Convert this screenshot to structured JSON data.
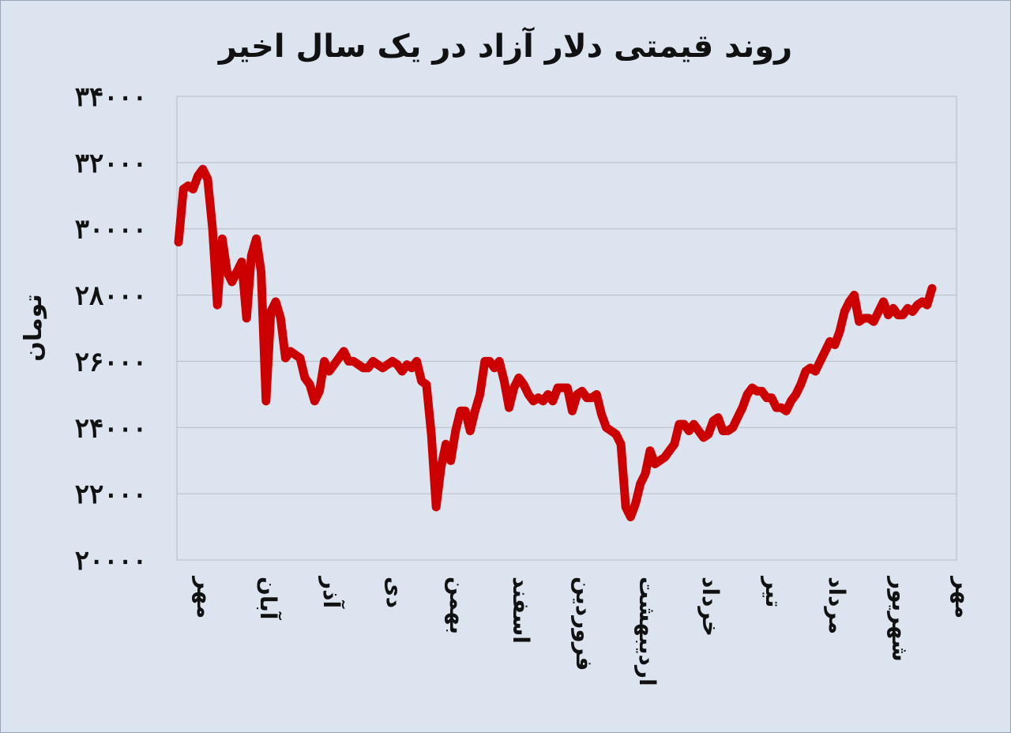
{
  "chart_data": {
    "type": "line",
    "title": "روند قیمتی دلار آزاد در یک سال اخیر",
    "ylabel": "تومان",
    "xlabel": "",
    "ylim": [
      20000,
      34000
    ],
    "yticks": [
      20000,
      22000,
      24000,
      26000,
      28000,
      30000,
      32000,
      34000
    ],
    "ytick_labels": [
      "۲۰۰۰۰",
      "۲۲۰۰۰",
      "۲۴۰۰۰",
      "۲۶۰۰۰",
      "۲۸۰۰۰",
      "۳۰۰۰۰",
      "۳۲۰۰۰",
      "۳۴۰۰۰"
    ],
    "grid": true,
    "months": [
      "مهر",
      "آبان",
      "آذر",
      "دی",
      "بهمن",
      "اسفند",
      "فروردین",
      "اردیبهشت",
      "خرداد",
      "تیر",
      "مرداد",
      "شهریور",
      "مهر"
    ],
    "line_color": "#cc0000",
    "series": [
      {
        "values": [
          29600,
          31200,
          31300,
          31200,
          31600,
          31800,
          31500,
          30000,
          27700,
          29700,
          28700,
          28400,
          28700,
          29000,
          27300,
          29200,
          29700,
          28700,
          24800,
          27500,
          27800,
          27300,
          26100,
          26300,
          26200,
          26100,
          25500,
          25300,
          24800,
          25100,
          26000,
          25700,
          25900,
          26100,
          26300,
          26000,
          26000,
          25900,
          25800,
          25800,
          26000,
          25900,
          25800,
          25900,
          26000,
          25900,
          25700,
          25900,
          25800,
          26000,
          25400,
          25300,
          23800,
          21600,
          22800,
          23500,
          23000,
          23900,
          24500,
          24500,
          23900,
          24500,
          25000,
          26000,
          26000,
          25800,
          26000,
          25400,
          24600,
          25200,
          25500,
          25300,
          25000,
          24800,
          24900,
          24800,
          25000,
          24800,
          25200,
          25200,
          25200,
          24500,
          25000,
          25100,
          24900,
          24900,
          25000,
          24400,
          24000,
          23900,
          23800,
          23500,
          21600,
          21300,
          21700,
          22300,
          22600,
          23300,
          22900,
          23000,
          23100,
          23300,
          23500,
          24100,
          24100,
          23900,
          24100,
          23900,
          23700,
          23800,
          24200,
          24300,
          23900,
          23900,
          24000,
          24300,
          24600,
          25000,
          25200,
          25100,
          25100,
          24900,
          24900,
          24600,
          24600,
          24500,
          24800,
          25000,
          25300,
          25700,
          25800,
          25700,
          26000,
          26300,
          26600,
          26500,
          26900,
          27500,
          27800,
          28000,
          27200,
          27300,
          27300,
          27200,
          27500,
          27800,
          27400,
          27600,
          27400,
          27400,
          27600,
          27500,
          27700,
          27800,
          27700,
          28200
        ]
      }
    ]
  }
}
